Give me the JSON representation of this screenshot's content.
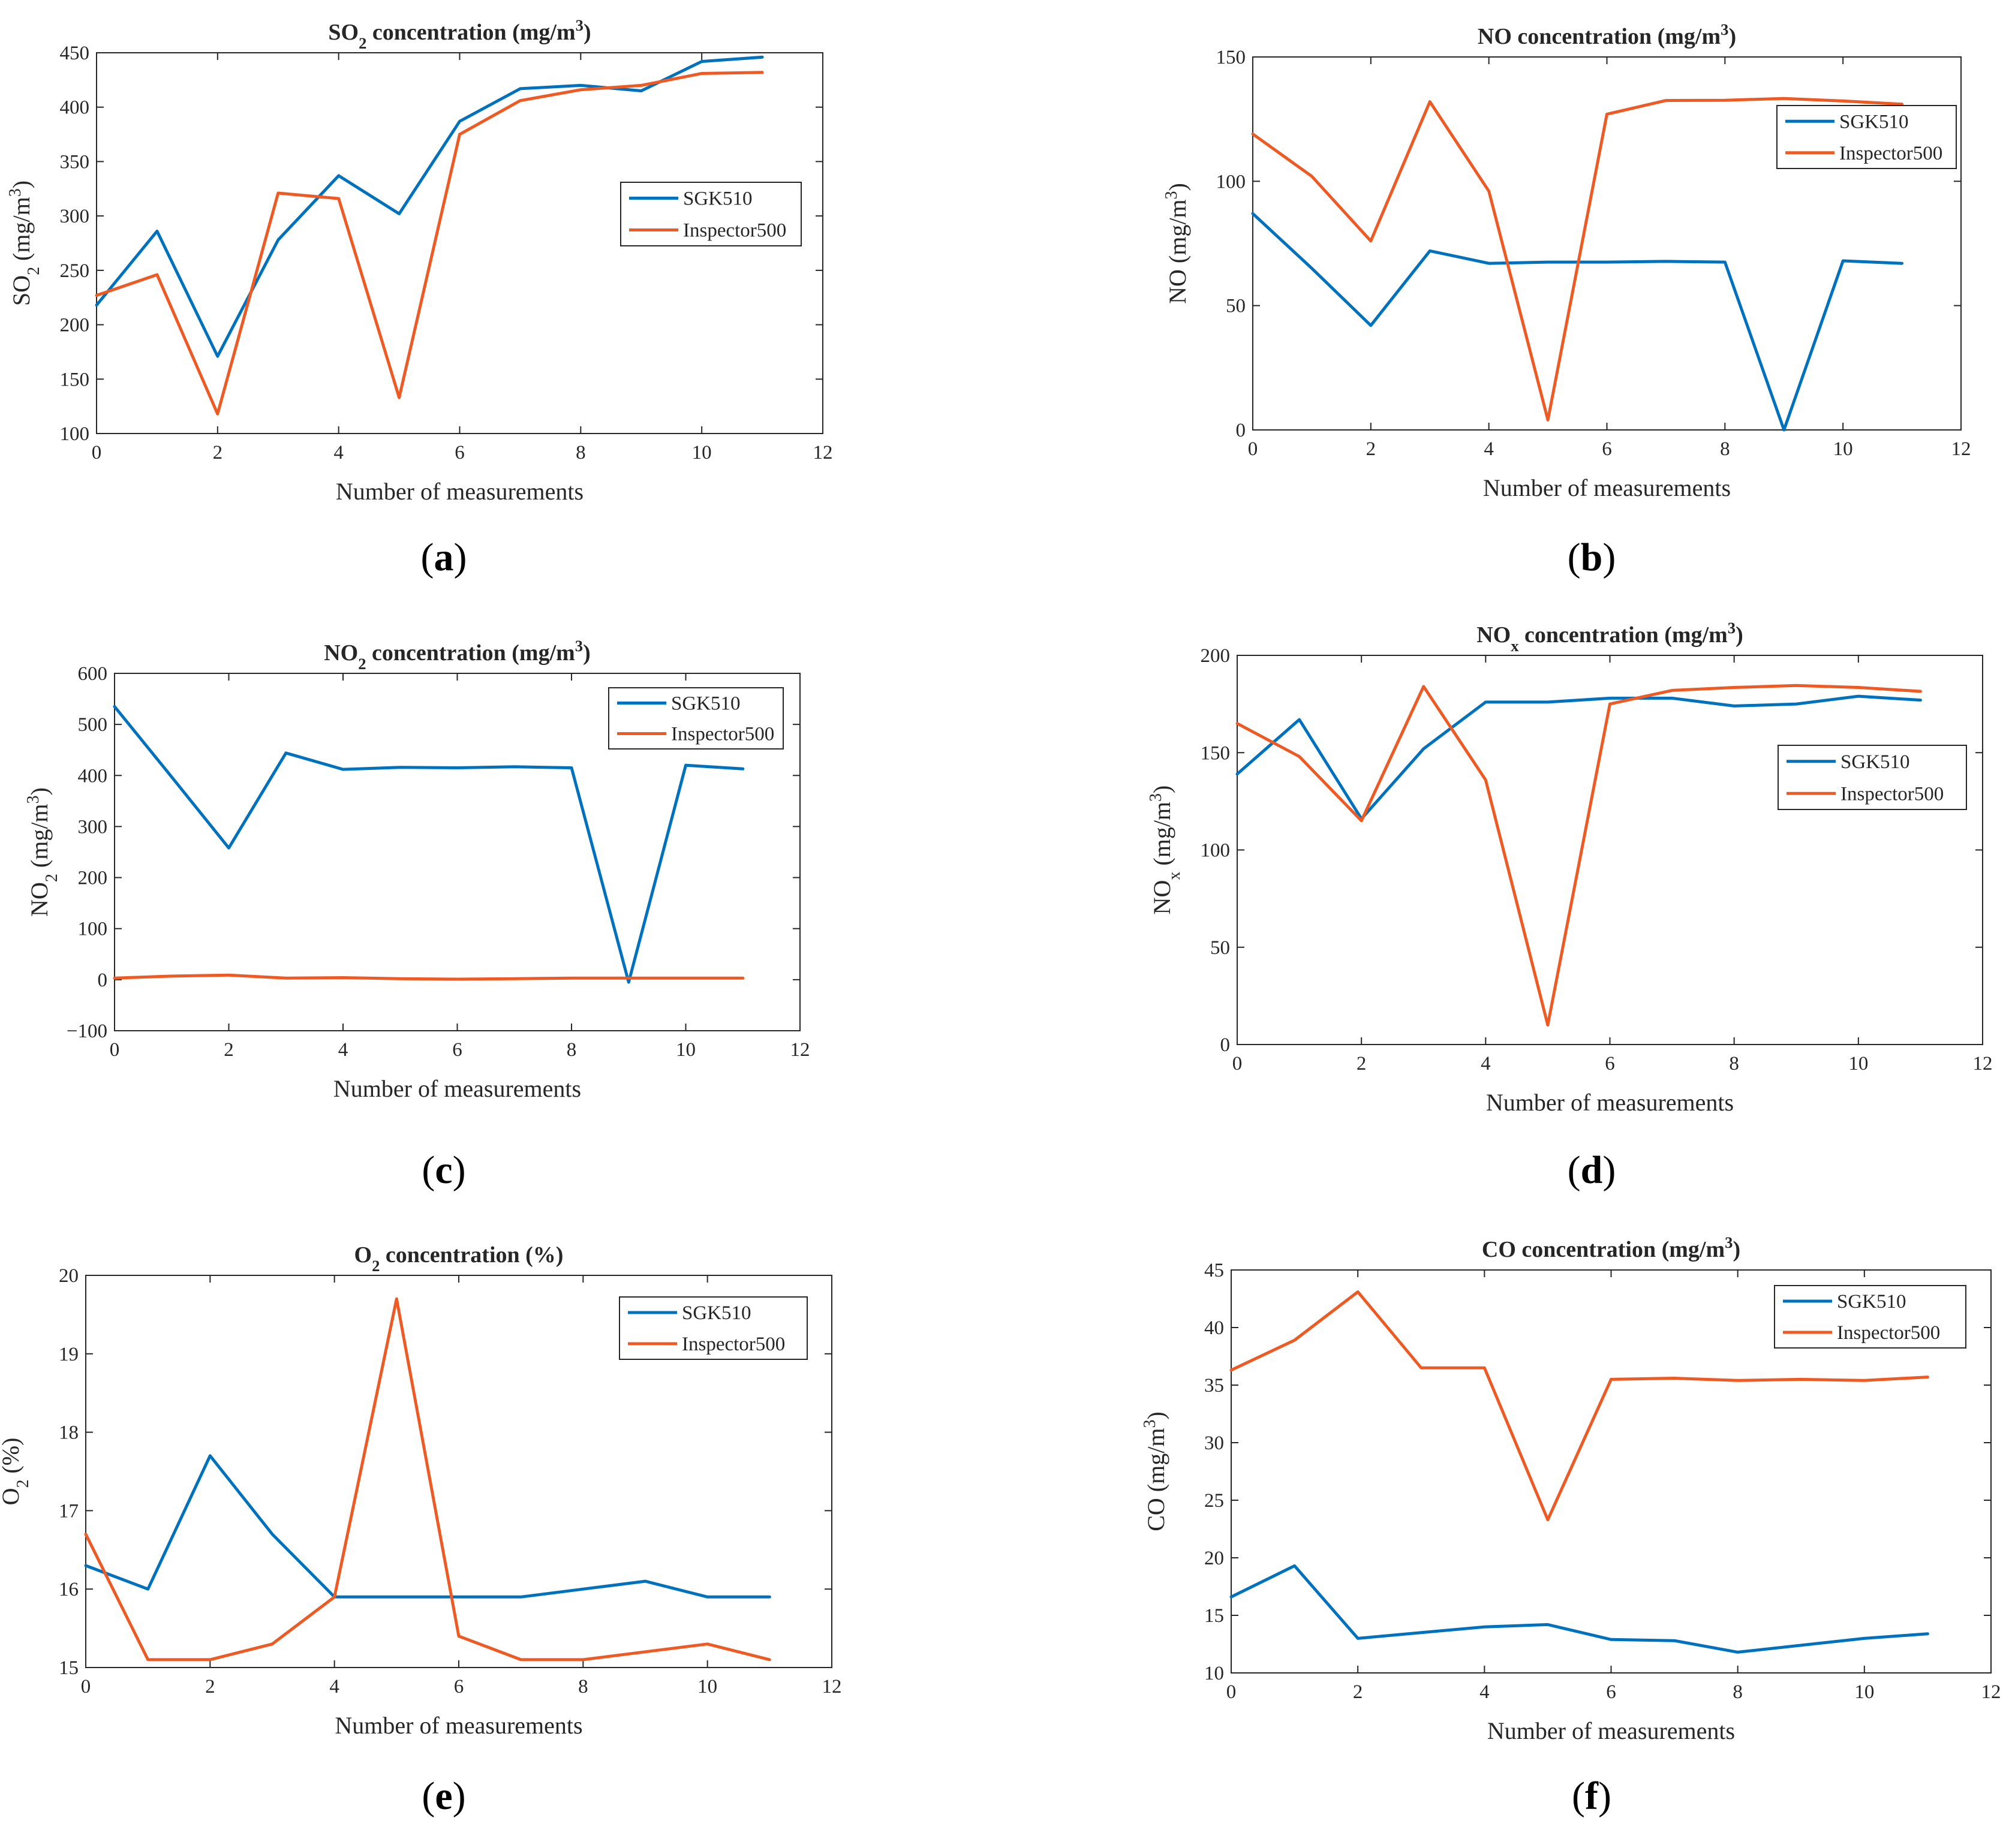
{
  "figure": {
    "legend_names": [
      "SGK510",
      "Inspector500"
    ],
    "colors": {
      "SGK510": "#0072BD",
      "Inspector500": "#EE5A24"
    }
  },
  "chart_data": [
    {
      "id": "a",
      "type": "line",
      "title_main": "SO",
      "title_sub": "2",
      "title_rest": " concentration (mg/m",
      "title_sup": "3",
      "title_end": ")",
      "xlabel": "Number of measurements",
      "ylabel_main": "SO",
      "ylabel_sub": "2",
      "ylabel_rest": " (mg/m",
      "ylabel_sup": "3",
      "ylabel_end": ")",
      "xlim": [
        0,
        12
      ],
      "ylim": [
        100,
        450
      ],
      "xticks": [
        0,
        2,
        4,
        6,
        8,
        10,
        12
      ],
      "yticks": [
        100,
        150,
        200,
        250,
        300,
        350,
        400,
        450
      ],
      "legend_position": "center-right",
      "x": [
        0,
        1,
        2,
        3,
        4,
        5,
        6,
        7,
        8,
        9,
        10,
        11
      ],
      "series": [
        {
          "name": "SGK510",
          "values": [
            218,
            286,
            171,
            278,
            337,
            302,
            387,
            417,
            420,
            415,
            442,
            446
          ]
        },
        {
          "name": "Inspector500",
          "values": [
            227,
            246,
            118,
            321,
            316,
            133,
            375,
            406,
            416,
            420,
            431,
            432
          ]
        }
      ],
      "caption_label": "a"
    },
    {
      "id": "b",
      "type": "line",
      "title_main": "NO concentration (mg/m",
      "title_sub": "",
      "title_rest": "",
      "title_sup": "3",
      "title_end": ")",
      "xlabel": "Number of measurements",
      "ylabel_main": "NO (mg/m",
      "ylabel_sub": "",
      "ylabel_rest": "",
      "ylabel_sup": "3",
      "ylabel_end": ")",
      "xlim": [
        0,
        12
      ],
      "ylim": [
        0,
        150
      ],
      "xticks": [
        0,
        2,
        4,
        6,
        8,
        10,
        12
      ],
      "yticks": [
        0,
        50,
        100,
        150
      ],
      "legend_position": "top-right",
      "x": [
        0,
        1,
        2,
        3,
        4,
        5,
        6,
        7,
        8,
        9,
        10,
        11
      ],
      "series": [
        {
          "name": "SGK510",
          "values": [
            87,
            65,
            42,
            72,
            67,
            67.5,
            67.5,
            67.8,
            67.5,
            0,
            68,
            67
          ]
        },
        {
          "name": "Inspector500",
          "values": [
            119,
            102,
            76,
            132,
            96,
            4,
            127,
            132.5,
            132.6,
            133.3,
            132.3,
            131
          ]
        }
      ],
      "caption_label": "b"
    },
    {
      "id": "c",
      "type": "line",
      "title_main": "NO",
      "title_sub": "2",
      "title_rest": " concentration (mg/m",
      "title_sup": "3",
      "title_end": ")",
      "xlabel": "Number of measurements",
      "ylabel_main": "NO",
      "ylabel_sub": "2",
      "ylabel_rest": " (mg/m",
      "ylabel_sup": "3",
      "ylabel_end": ")",
      "xlim": [
        0,
        12
      ],
      "ylim": [
        -100,
        600
      ],
      "xticks": [
        0,
        2,
        4,
        6,
        8,
        10,
        12
      ],
      "yticks": [
        -100,
        0,
        100,
        200,
        300,
        400,
        500,
        600
      ],
      "legend_position": "top-right",
      "x": [
        0,
        1,
        2,
        3,
        4,
        5,
        6,
        7,
        8,
        9,
        10,
        11
      ],
      "series": [
        {
          "name": "SGK510",
          "values": [
            535,
            397,
            258,
            444,
            412,
            416,
            415,
            417,
            415,
            -5,
            420,
            413
          ]
        },
        {
          "name": "Inspector500",
          "values": [
            3,
            7,
            9,
            3,
            4,
            2,
            1,
            2,
            3,
            3,
            3,
            3
          ]
        }
      ],
      "caption_label": "c"
    },
    {
      "id": "d",
      "type": "line",
      "title_main": "NO",
      "title_sub": "x",
      "title_rest": " concentration (mg/m",
      "title_sup": "3",
      "title_end": ")",
      "xlabel": "Number of measurements",
      "ylabel_main": "NO",
      "ylabel_sub": "x",
      "ylabel_rest": " (mg/m",
      "ylabel_sup": "3",
      "ylabel_end": ")",
      "xlim": [
        0,
        12
      ],
      "ylim": [
        0,
        200
      ],
      "xticks": [
        0,
        2,
        4,
        6,
        8,
        10,
        12
      ],
      "yticks": [
        0,
        50,
        100,
        150,
        200
      ],
      "legend_position": "center-right",
      "x": [
        0,
        1,
        2,
        3,
        4,
        5,
        6,
        7,
        8,
        9,
        10,
        11
      ],
      "series": [
        {
          "name": "SGK510",
          "values": [
            139,
            167,
            116,
            152,
            176,
            176,
            178,
            178,
            174,
            175,
            179,
            177
          ]
        },
        {
          "name": "Inspector500",
          "values": [
            165,
            148,
            115,
            184,
            136,
            10,
            175,
            182,
            183.5,
            184.5,
            183.5,
            181.5
          ]
        }
      ],
      "caption_label": "d"
    },
    {
      "id": "e",
      "type": "line",
      "title_main": "O",
      "title_sub": "2",
      "title_rest": " concentration (%)",
      "title_sup": "",
      "title_end": "",
      "xlabel": "Number of measurements",
      "ylabel_main": "O",
      "ylabel_sub": "2",
      "ylabel_rest": " (%)",
      "ylabel_sup": "",
      "ylabel_end": "",
      "xlim": [
        0,
        12
      ],
      "ylim": [
        15,
        20
      ],
      "xticks": [
        0,
        2,
        4,
        6,
        8,
        10,
        12
      ],
      "yticks": [
        15,
        16,
        17,
        18,
        19,
        20
      ],
      "legend_position": "top-right",
      "x": [
        0,
        1,
        2,
        3,
        4,
        5,
        6,
        7,
        8,
        9,
        10,
        11
      ],
      "series": [
        {
          "name": "SGK510",
          "values": [
            16.3,
            16.0,
            17.7,
            16.7,
            15.9,
            15.9,
            15.9,
            15.9,
            16.0,
            16.1,
            15.9,
            15.9
          ]
        },
        {
          "name": "Inspector500",
          "values": [
            16.7,
            15.1,
            15.1,
            15.3,
            15.9,
            19.7,
            15.4,
            15.1,
            15.1,
            15.2,
            15.3,
            15.1
          ]
        }
      ],
      "caption_label": "e"
    },
    {
      "id": "f",
      "type": "line",
      "title_main": "CO concentration (mg/m",
      "title_sub": "",
      "title_rest": "",
      "title_sup": "3",
      "title_end": ")",
      "xlabel": "Number of measurements",
      "ylabel_main": "CO (mg/m",
      "ylabel_sub": "",
      "ylabel_rest": "",
      "ylabel_sup": "3",
      "ylabel_end": ")",
      "xlim": [
        0,
        12
      ],
      "ylim": [
        10,
        45
      ],
      "xticks": [
        0,
        2,
        4,
        6,
        8,
        10,
        12
      ],
      "yticks": [
        10,
        15,
        20,
        25,
        30,
        35,
        40,
        45
      ],
      "legend_position": "top-right",
      "x": [
        0,
        1,
        2,
        3,
        4,
        5,
        6,
        7,
        8,
        9,
        10,
        11
      ],
      "series": [
        {
          "name": "SGK510",
          "values": [
            16.6,
            19.3,
            13.0,
            13.5,
            14.0,
            14.2,
            12.9,
            12.8,
            11.8,
            12.4,
            13.0,
            13.4
          ]
        },
        {
          "name": "Inspector500",
          "values": [
            36.3,
            38.9,
            43.1,
            36.5,
            36.5,
            23.3,
            35.5,
            35.6,
            35.4,
            35.5,
            35.4,
            35.7
          ]
        }
      ],
      "caption_label": "f"
    }
  ]
}
